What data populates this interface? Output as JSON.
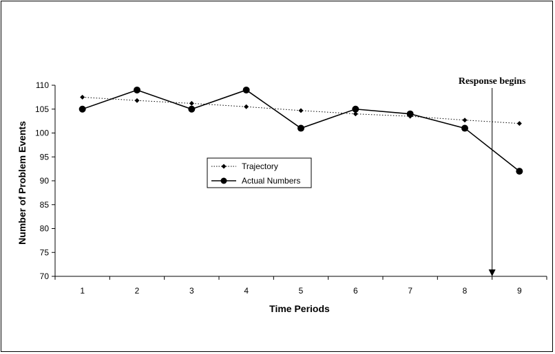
{
  "chart_data": {
    "type": "line",
    "xlabel": "Time Periods",
    "ylabel": "Number of Problem Events",
    "x": [
      1,
      2,
      3,
      4,
      5,
      6,
      7,
      8,
      9
    ],
    "ylim": [
      70,
      110
    ],
    "yticks": [
      70,
      75,
      80,
      85,
      90,
      95,
      100,
      105,
      110
    ],
    "grid": false,
    "legend_position": "center",
    "series": [
      {
        "name": "Trajectory",
        "style": "dotted",
        "marker": "diamond",
        "values": [
          107.5,
          106.8,
          106.2,
          105.5,
          104.7,
          104.0,
          103.5,
          102.7,
          102.0
        ]
      },
      {
        "name": "Actual Numbers",
        "style": "solid",
        "marker": "circle",
        "values": [
          105,
          109,
          105,
          109,
          101,
          105,
          104,
          101,
          92
        ]
      }
    ],
    "annotation": {
      "text": "Response begins",
      "x": 8.5
    }
  }
}
